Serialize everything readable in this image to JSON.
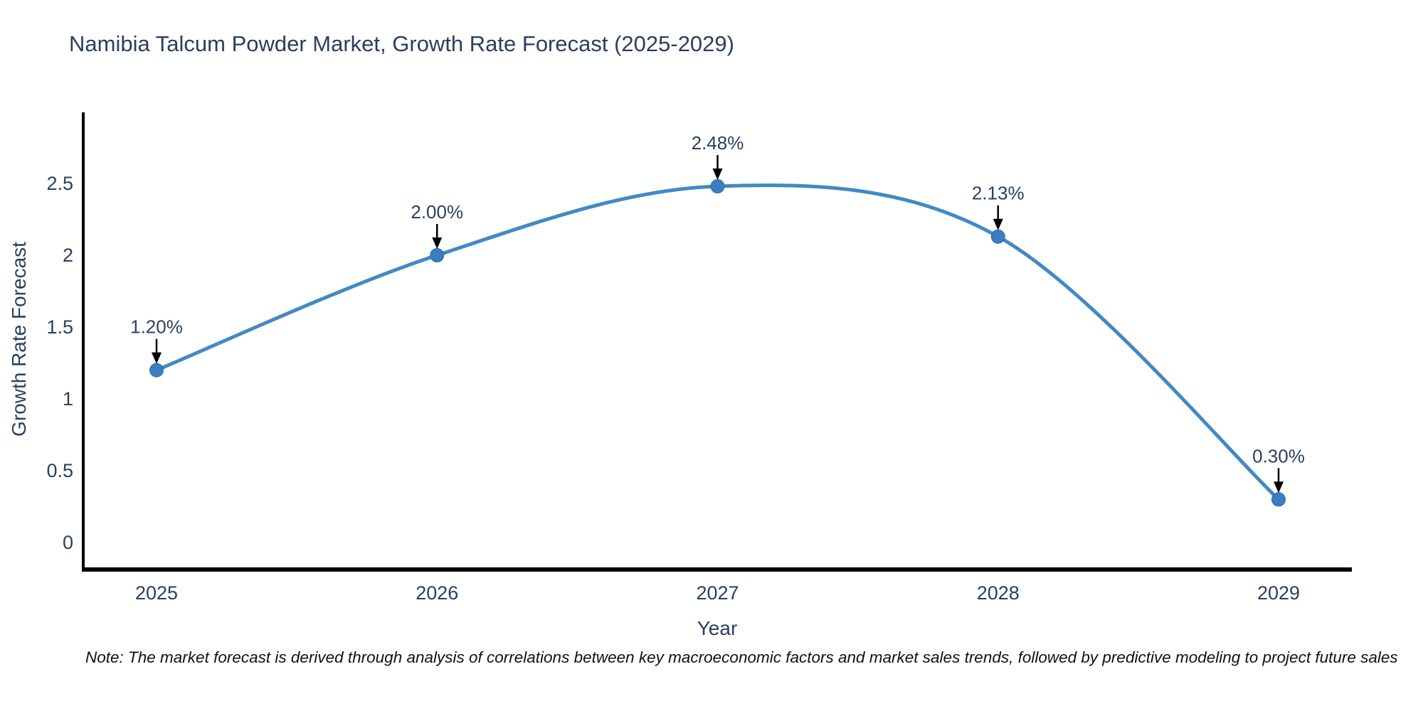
{
  "title": "Namibia Talcum Powder Market, Growth Rate Forecast (2025-2029)",
  "note": "Note: The market forecast is derived through analysis of correlations between key macroeconomic factors and market sales trends, followed by predictive modeling to project future sales",
  "chart_data": {
    "type": "line",
    "line_shape": "spline",
    "title": "Namibia Talcum Powder Market, Growth Rate Forecast (2025-2029)",
    "xlabel": "Year",
    "ylabel": "Growth Rate Forecast",
    "categories": [
      "2025",
      "2026",
      "2027",
      "2028",
      "2029"
    ],
    "values": [
      1.2,
      2.0,
      2.48,
      2.13,
      0.3
    ],
    "point_labels": [
      "1.20%",
      "2.00%",
      "2.48%",
      "2.13%",
      "0.30%"
    ],
    "y_ticks": [
      0,
      0.5,
      1,
      1.5,
      2,
      2.5
    ],
    "ylim": [
      -0.2,
      3.0
    ],
    "grid": false,
    "legend_position": "none",
    "annotation_arrows": true,
    "colors": {
      "line": "#4289c4",
      "marker": "#3a7ebf",
      "marker_edge": "#2e6ca4",
      "axis_line": "#000000",
      "tick_text": "#2a3f5f",
      "title_text": "#2a3f5f",
      "annotation_text": "#2a3f5f",
      "arrow": "#000000",
      "note_text": "#111111",
      "background": "#ffffff"
    }
  }
}
